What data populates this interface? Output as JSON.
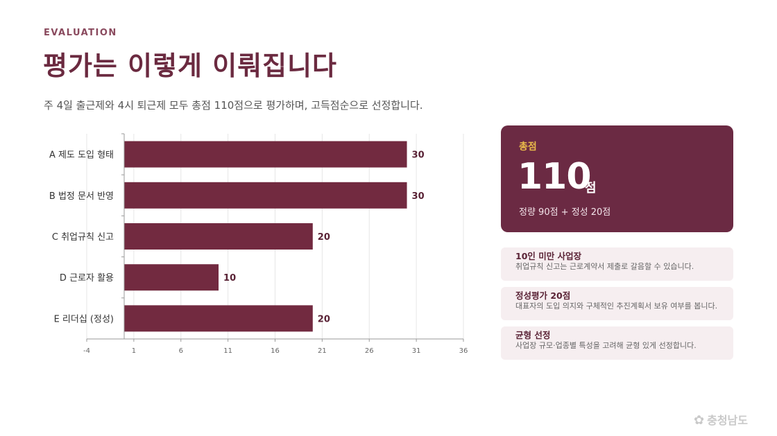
{
  "header": {
    "eyebrow": "EVALUATION",
    "title": "평가는 이렇게 이뤄집니다",
    "subtitle": "주 4일 출근제와 4시 퇴근제 모두 총점 110점으로 평가하며, 고득점순으로 선정합니다."
  },
  "chart_data": {
    "type": "bar",
    "orientation": "horizontal",
    "categories": [
      "A 제도 도입 형태",
      "B 법정 문서 반영",
      "C 취업규칙 신고",
      "D 근로자 활용",
      "E 리더십 (정성)"
    ],
    "values": [
      30,
      30,
      20,
      10,
      20
    ],
    "x_ticks": [
      -4,
      1,
      6,
      11,
      16,
      21,
      26,
      31,
      36
    ],
    "xlim": [
      -4,
      36
    ],
    "grid": true,
    "bar_color": "#722a40"
  },
  "score_card": {
    "label": "총점",
    "value": "110",
    "unit": "점",
    "detail": "정량 90점 + 정성 20점"
  },
  "notes": [
    {
      "title": "10인 미만 사업장",
      "text": "취업규칙 신고는 근로계약서 제출로 갈음할 수 있습니다."
    },
    {
      "title": "정성평가 20점",
      "text": "대표자의 도입 의지와 구체적인 추진계획서 보유 여부를 봅니다."
    },
    {
      "title": "균형 선정",
      "text": "사업장 규모·업종별 특성을 고려해 균형 있게 선정합니다."
    }
  ],
  "watermark": {
    "icon": "flower-logo-icon",
    "text": "충청남도"
  }
}
